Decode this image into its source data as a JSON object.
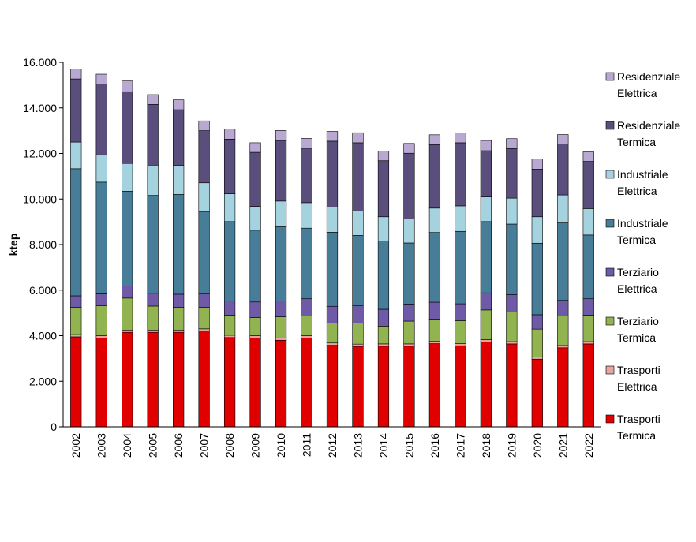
{
  "chart_data": {
    "type": "bar",
    "stacked": true,
    "title": "",
    "xlabel": "",
    "ylabel": "ktep",
    "ylim": [
      0,
      16000
    ],
    "yticks": [
      0,
      2000,
      4000,
      6000,
      8000,
      10000,
      12000,
      14000,
      16000
    ],
    "ytick_labels": [
      "0",
      "2.000",
      "4.000",
      "6.000",
      "8.000",
      "10.000",
      "12.000",
      "14.000",
      "16.000"
    ],
    "grid": false,
    "legend_position": "right",
    "categories": [
      "2002",
      "2003",
      "2004",
      "2005",
      "2006",
      "2007",
      "2008",
      "2009",
      "2010",
      "2011",
      "2012",
      "2013",
      "2014",
      "2015",
      "2016",
      "2017",
      "2018",
      "2019",
      "2020",
      "2021",
      "2022"
    ],
    "series": [
      {
        "name": "Trasporti Termica",
        "line1": "Trasporti",
        "line2": "Termica",
        "color": "#e00000",
        "values": [
          3950,
          3900,
          4150,
          4150,
          4150,
          4200,
          3920,
          3900,
          3800,
          3900,
          3580,
          3530,
          3540,
          3540,
          3650,
          3560,
          3730,
          3640,
          2970,
          3470,
          3640
        ]
      },
      {
        "name": "Trasporti Elettrica",
        "line1": "Trasporti",
        "line2": "Elettrica",
        "color": "#e8a4a4",
        "values": [
          100,
          100,
          100,
          100,
          100,
          100,
          100,
          100,
          100,
          100,
          100,
          100,
          100,
          100,
          100,
          100,
          100,
          100,
          100,
          100,
          100
        ]
      },
      {
        "name": "Terziario Termica",
        "line1": "Terziario",
        "line2": "Termica",
        "color": "#92b450",
        "values": [
          1200,
          1320,
          1400,
          1050,
          1000,
          950,
          880,
          800,
          930,
          870,
          880,
          920,
          780,
          1000,
          980,
          1000,
          1300,
          1300,
          1220,
          1290,
          1160
        ]
      },
      {
        "name": "Terziario Elettrica",
        "line1": "Terziario",
        "line2": "Elettrica",
        "color": "#6f5aa8",
        "values": [
          500,
          520,
          530,
          560,
          570,
          580,
          630,
          680,
          700,
          750,
          730,
          760,
          740,
          750,
          740,
          740,
          750,
          760,
          630,
          690,
          720
        ]
      },
      {
        "name": "Industriale Termica",
        "line1": "Industriale",
        "line2": "Termica",
        "color": "#477d98",
        "values": [
          5580,
          4900,
          4160,
          4300,
          4380,
          3620,
          3480,
          3150,
          3250,
          3100,
          3250,
          3090,
          3000,
          2680,
          3060,
          3180,
          3130,
          3100,
          3140,
          3400,
          2800
        ]
      },
      {
        "name": "Industriale Elettrica",
        "line1": "Industriale",
        "line2": "Elettrica",
        "color": "#a5d2df",
        "values": [
          1170,
          1200,
          1220,
          1300,
          1270,
          1260,
          1220,
          1050,
          1130,
          1120,
          1100,
          1080,
          1060,
          1060,
          1070,
          1120,
          1080,
          1140,
          1160,
          1230,
          1160
        ]
      },
      {
        "name": "Residenziale Termica",
        "line1": "Residenziale",
        "line2": "Termica",
        "color": "#5a4e7c",
        "values": [
          2770,
          3110,
          3150,
          2690,
          2450,
          2290,
          2400,
          2370,
          2660,
          2390,
          2900,
          2990,
          2460,
          2880,
          2790,
          2770,
          2030,
          2170,
          2090,
          2230,
          2070
        ]
      },
      {
        "name": "Residenziale Elettrica",
        "line1": "Residenziale",
        "line2": "Elettrica",
        "color": "#b9a9d2",
        "values": [
          430,
          430,
          470,
          430,
          430,
          430,
          440,
          420,
          440,
          430,
          430,
          440,
          420,
          430,
          430,
          430,
          450,
          440,
          440,
          420,
          420
        ]
      }
    ]
  }
}
